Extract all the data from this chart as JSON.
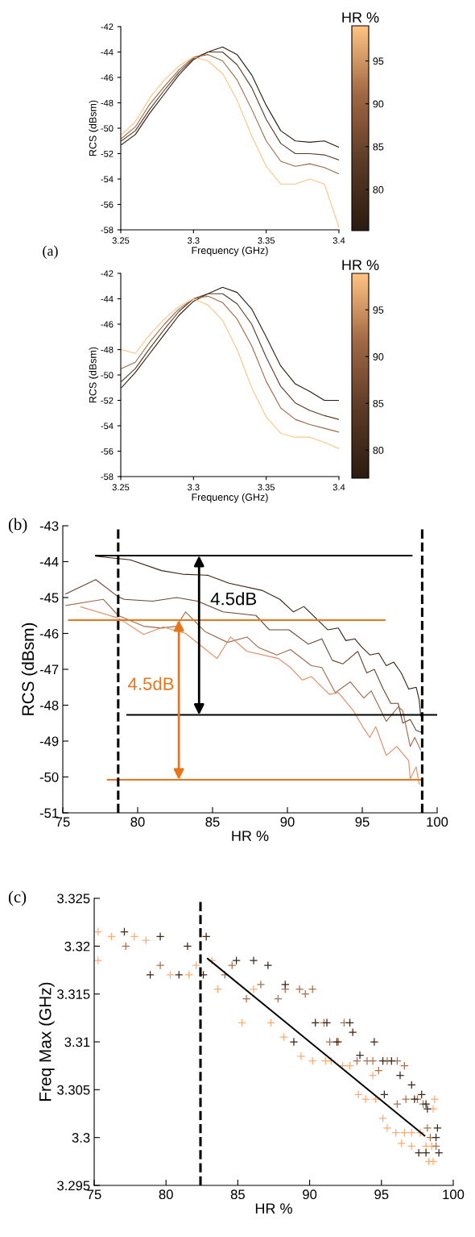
{
  "chart_data": [
    {
      "type": "line",
      "xlabel": "Frequency (GHz)",
      "ylabel": "RCS (dBsm)",
      "clabel": "HR %",
      "clim": [
        75.2,
        99.1
      ],
      "cticks": [
        80,
        85,
        90,
        95
      ],
      "xlim": [
        3.25,
        3.4
      ],
      "ylim": [
        -58,
        -42
      ],
      "xticks": [
        3.25,
        3.3,
        3.35,
        3.4
      ],
      "yticks": [
        -58,
        -56,
        -54,
        -52,
        -50,
        -48,
        -46,
        -44,
        -42
      ],
      "annotations": [
        "(a)"
      ],
      "x": [
        3.2505,
        3.26,
        3.27,
        3.28,
        3.29,
        3.3,
        3.31,
        3.32,
        3.33,
        3.34,
        3.35,
        3.36,
        3.37,
        3.38,
        3.39,
        3.4
      ],
      "series": [
        {
          "color": "#2b1b10",
          "values": [
            -51.3,
            -50.5,
            -48.8,
            -47.3,
            -45.8,
            -44.6,
            -44.0,
            -43.6,
            -44.2,
            -45.8,
            -48.2,
            -50.2,
            -51.0,
            -51.1,
            -51.0,
            -51.5
          ]
        },
        {
          "color": "#5a3a25",
          "values": [
            -51.0,
            -50.2,
            -48.5,
            -47.0,
            -45.6,
            -44.5,
            -44.0,
            -44.0,
            -45.0,
            -46.8,
            -49.3,
            -51.2,
            -52.0,
            -52.0,
            -52.1,
            -52.5
          ]
        },
        {
          "color": "#a06844",
          "values": [
            -50.8,
            -49.9,
            -48.1,
            -46.7,
            -45.4,
            -44.4,
            -44.2,
            -44.7,
            -46.2,
            -48.5,
            -51.0,
            -52.6,
            -53.0,
            -52.8,
            -53.1,
            -53.6
          ]
        },
        {
          "color": "#ffc382",
          "values": [
            -50.5,
            -49.5,
            -47.6,
            -46.2,
            -45.1,
            -44.4,
            -44.7,
            -45.7,
            -47.8,
            -50.6,
            -53.0,
            -54.4,
            -54.4,
            -54.0,
            -54.4,
            -57.8
          ]
        }
      ]
    },
    {
      "type": "line",
      "xlabel": "Frequency (GHz)",
      "ylabel": "RCS (dBsm)",
      "clabel": "HR %",
      "clim": [
        77,
        98.9
      ],
      "cticks": [
        80,
        85,
        90,
        95
      ],
      "xlim": [
        3.25,
        3.4
      ],
      "ylim": [
        -58,
        -42
      ],
      "xticks": [
        3.25,
        3.3,
        3.35,
        3.4
      ],
      "yticks": [
        -58,
        -56,
        -54,
        -52,
        -50,
        -48,
        -46,
        -44,
        -42
      ],
      "x": [
        3.2505,
        3.26,
        3.27,
        3.28,
        3.29,
        3.3,
        3.31,
        3.32,
        3.33,
        3.34,
        3.35,
        3.36,
        3.37,
        3.38,
        3.39,
        3.4
      ],
      "series": [
        {
          "color": "#2b1b10",
          "values": [
            -51.0,
            -49.8,
            -48.3,
            -46.8,
            -45.3,
            -44.2,
            -43.6,
            -43.1,
            -43.5,
            -44.8,
            -47.0,
            -49.3,
            -50.7,
            -51.3,
            -52.0,
            -52.0
          ]
        },
        {
          "color": "#5a3a25",
          "values": [
            -50.5,
            -49.5,
            -47.9,
            -46.4,
            -45.0,
            -44.0,
            -43.6,
            -43.6,
            -44.4,
            -46.0,
            -48.6,
            -50.9,
            -52.2,
            -52.8,
            -53.2,
            -53.5
          ]
        },
        {
          "color": "#a06844",
          "values": [
            -49.5,
            -49.0,
            -47.4,
            -46.0,
            -44.8,
            -44.0,
            -43.8,
            -44.3,
            -45.6,
            -47.7,
            -50.5,
            -52.6,
            -53.5,
            -53.9,
            -54.2,
            -54.5
          ]
        },
        {
          "color": "#ffc382",
          "values": [
            -48.0,
            -48.3,
            -46.8,
            -45.6,
            -44.6,
            -44.0,
            -44.5,
            -45.7,
            -48.0,
            -51.0,
            -53.3,
            -54.6,
            -54.9,
            -54.9,
            -55.3,
            -55.8
          ]
        }
      ]
    },
    {
      "type": "line",
      "xlabel": "HR %",
      "ylabel": "RCS (dBsm)",
      "xlim": [
        75,
        100
      ],
      "ylim": [
        -51,
        -43
      ],
      "xticks": [
        75,
        80,
        85,
        90,
        95,
        100
      ],
      "yticks": [
        -51,
        -50,
        -49,
        -48,
        -47,
        -46,
        -45,
        -44,
        -43
      ],
      "annotations": [
        "(b)",
        {
          "text": "4.5dB",
          "x": 84.1,
          "y": -43.83
        },
        "4.5dB"
      ],
      "ref_lines": [
        {
          "axis": "x",
          "value": 78.7,
          "color": "#000000",
          "line_style": "dashed"
        },
        {
          "axis": "x",
          "value": 99.0,
          "color": "#000000",
          "line_style": "dashed"
        }
      ],
      "series": [
        {
          "color": "#3b2517",
          "x": [
            77.2,
            79.5,
            81.6,
            83.0,
            84.7,
            86.1,
            88.3,
            89.5,
            90.4,
            91.1,
            92.7,
            93.4,
            93.9,
            94.5,
            94.9,
            95.5,
            96.1,
            96.6,
            97.1,
            97.6,
            98.1,
            98.6,
            98.8,
            98.9
          ],
          "values": [
            -43.85,
            -43.95,
            -44.25,
            -44.35,
            -44.38,
            -44.6,
            -44.8,
            -45.05,
            -45.4,
            -45.25,
            -45.9,
            -45.85,
            -46.2,
            -46.15,
            -46.35,
            -46.6,
            -46.55,
            -46.9,
            -46.8,
            -47.1,
            -47.55,
            -47.5,
            -47.85,
            -48.3
          ]
        },
        {
          "color": "#6a4530",
          "x": [
            75.2,
            77.2,
            78.7,
            79.1,
            81.0,
            82.6,
            84.0,
            85.7,
            87.9,
            88.8,
            90.1,
            91.4,
            92.3,
            93.0,
            93.7,
            94.7,
            95.3,
            95.8,
            96.4,
            96.9,
            97.4,
            97.7,
            98.2,
            98.6,
            98.9
          ],
          "values": [
            -44.9,
            -44.5,
            -44.98,
            -45.05,
            -45.1,
            -45.0,
            -45.1,
            -45.4,
            -45.5,
            -45.9,
            -45.9,
            -46.3,
            -46.15,
            -46.75,
            -46.85,
            -46.5,
            -47.1,
            -47.0,
            -47.55,
            -47.95,
            -47.95,
            -48.5,
            -48.4,
            -48.7,
            -48.75
          ]
        },
        {
          "color": "#a0694a",
          "x": [
            75.2,
            77.7,
            78.7,
            80.4,
            81.6,
            82.6,
            83.2,
            84.5,
            86.0,
            87.3,
            88.1,
            89.3,
            90.2,
            91.6,
            92.3,
            93.2,
            94.2,
            95.1,
            95.6,
            96.6,
            97.4,
            97.7,
            98.2,
            98.5,
            98.9
          ],
          "values": [
            -45.22,
            -45.05,
            -45.5,
            -45.8,
            -45.85,
            -45.8,
            -45.4,
            -45.95,
            -46.25,
            -46.1,
            -46.4,
            -46.6,
            -46.45,
            -46.9,
            -46.95,
            -47.65,
            -47.35,
            -47.8,
            -47.6,
            -48.45,
            -48.05,
            -48.15,
            -49.15,
            -48.9,
            -49.25
          ]
        },
        {
          "color": "#e08a60",
          "x": [
            76.2,
            78.7,
            80.4,
            81.7,
            83.2,
            85.3,
            86.2,
            87.3,
            89.4,
            90.2,
            91.0,
            91.6,
            92.8,
            93.4,
            94.4,
            95.1,
            95.5,
            95.9,
            96.6,
            97.3,
            98.1,
            98.2,
            98.6,
            98.8
          ],
          "values": [
            -45.26,
            -45.57,
            -46.03,
            -45.82,
            -46.0,
            -46.7,
            -46.1,
            -46.5,
            -46.7,
            -46.95,
            -47.3,
            -47.2,
            -47.7,
            -47.65,
            -48.15,
            -48.65,
            -48.9,
            -48.6,
            -49.4,
            -49.15,
            -49.55,
            -50.05,
            -49.72,
            -50.2
          ]
        },
        {
          "color": "#000000",
          "x": [
            77.2,
            98.3
          ],
          "values": [
            -43.83,
            -43.83
          ]
        },
        {
          "color": "#000000",
          "x": [
            79.3,
            100
          ],
          "values": [
            -48.27,
            -48.27
          ]
        },
        {
          "color": "#e8751a",
          "x": [
            75.4,
            96.5
          ],
          "values": [
            -45.63,
            -45.63
          ]
        },
        {
          "color": "#e8751a",
          "x": [
            78.0,
            98.9
          ],
          "values": [
            -50.08,
            -50.08
          ]
        }
      ]
    },
    {
      "type": "scatter",
      "marker": "cross",
      "xlabel": "HR %",
      "ylabel": "Freq Max (GHz)",
      "xlim": [
        75,
        100
      ],
      "ylim": [
        3.295,
        3.325
      ],
      "xticks": [
        75,
        80,
        85,
        90,
        95,
        100
      ],
      "yticks": [
        3.295,
        3.3,
        3.305,
        3.31,
        3.315,
        3.32,
        3.325
      ],
      "annotations": [
        "(c)"
      ],
      "ref_lines": [
        {
          "axis": "x",
          "value": 82.4,
          "color": "#000000",
          "line_style": "dashed"
        }
      ],
      "series": [
        {
          "color": "#ffaa70",
          "x": [
            75.27,
            75.27,
            76.2,
            77.8,
            78.6,
            80.3,
            81.6,
            82.1,
            83.2,
            83.6,
            85.3,
            86.1,
            87.3,
            88.2,
            89.4,
            90.2,
            91.1,
            91.5,
            92.3,
            92.8,
            93.4,
            93.9,
            94.4,
            94.6,
            95.1,
            95.4,
            96.0,
            96.4,
            96.6,
            97.1,
            97.1,
            97.7,
            98.1,
            98.3,
            98.6,
            98.5,
            98.6,
            98.7
          ],
          "values": [
            3.3215,
            3.3185,
            3.321,
            3.321,
            3.3206,
            3.317,
            3.317,
            3.318,
            3.3185,
            3.3155,
            3.312,
            3.3155,
            3.312,
            3.3105,
            3.3085,
            3.308,
            3.308,
            3.308,
            3.3075,
            3.3075,
            3.3045,
            3.304,
            3.3065,
            3.304,
            3.302,
            3.301,
            3.3005,
            3.2994,
            3.3005,
            3.3005,
            3.2991,
            3.3005,
            3.2991,
            3.2975,
            3.2975,
            3.2991,
            3.303,
            3.304
          ]
        },
        {
          "color": "#a8704a",
          "x": [
            77.2,
            79.6,
            84.6,
            84.1,
            85.6,
            86.6,
            88.3,
            87.8,
            89.3,
            89.7,
            90.2,
            91.0,
            91.4,
            92.0,
            92.4,
            93.3,
            94.0,
            94.4,
            94.8,
            95.4,
            96.1,
            96.6,
            96.1,
            96.7,
            97.5,
            97.9,
            98.2,
            98.4,
            98.8
          ],
          "values": [
            3.32,
            3.318,
            3.318,
            3.317,
            3.3145,
            3.316,
            3.3155,
            3.3145,
            3.3155,
            3.315,
            3.3155,
            3.312,
            3.31,
            3.31,
            3.312,
            3.308,
            3.308,
            3.308,
            3.307,
            3.308,
            3.308,
            3.3075,
            3.3035,
            3.304,
            3.304,
            3.3035,
            3.301,
            3.3,
            3.2991
          ]
        },
        {
          "color": "#3c2616",
          "x": [
            77.1,
            79.6,
            81.5,
            78.9,
            80.9,
            82.8,
            82.6,
            84.9,
            86.1,
            87.1,
            88.3,
            88.9,
            90.4,
            91.2,
            91.9,
            92.8,
            93.0,
            93.5,
            94.5,
            95.1,
            95.2,
            95.7,
            96.3,
            97.1,
            97.3,
            97.8,
            97.6,
            98.1,
            98.2,
            98.1,
            98.9,
            98.8,
            99.0
          ],
          "values": [
            3.3215,
            3.321,
            3.32,
            3.317,
            3.317,
            3.321,
            3.317,
            3.3185,
            3.3185,
            3.318,
            3.316,
            3.31,
            3.312,
            3.312,
            3.31,
            3.312,
            3.311,
            3.3086,
            3.31,
            3.308,
            3.3045,
            3.308,
            3.3065,
            3.3055,
            3.304,
            3.3045,
            3.2984,
            3.3035,
            3.303,
            3.2984,
            3.301,
            3.3,
            3.2984
          ]
        },
        {
          "type": "line",
          "marker": "none",
          "color": "#000000",
          "x": [
            82.9,
            98.0
          ],
          "values": [
            3.3187,
            3.3002
          ]
        }
      ]
    }
  ]
}
